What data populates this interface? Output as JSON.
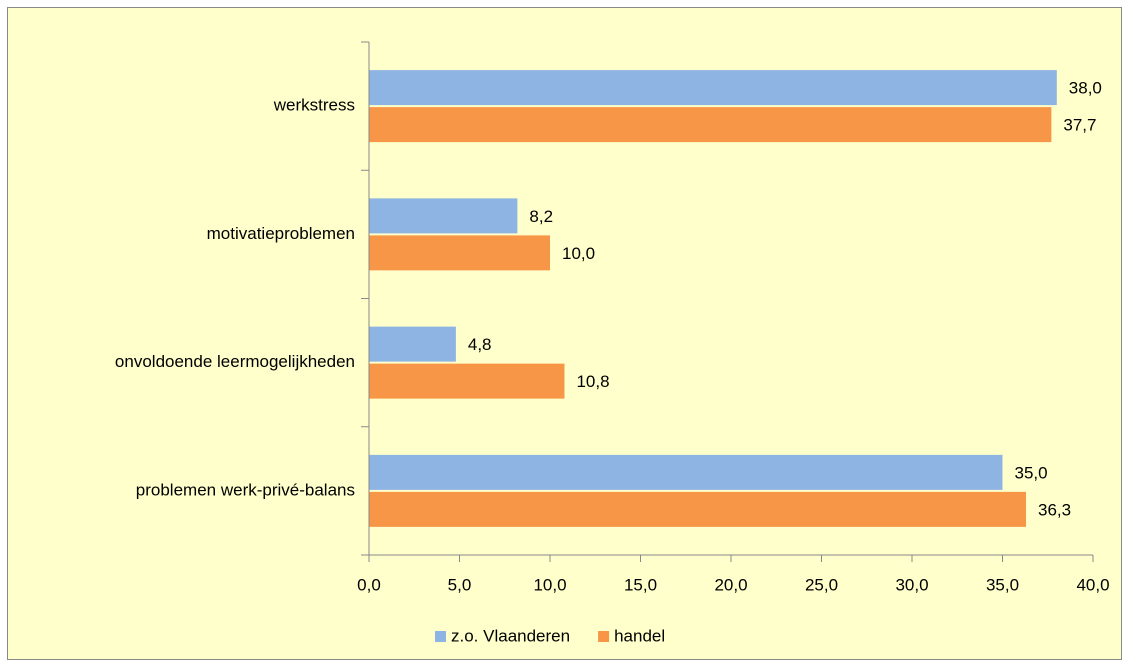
{
  "chart_data": {
    "type": "hbar",
    "categories": [
      "werkstress",
      "motivatieproblemen",
      "onvoldoende leermogelijkheden",
      "problemen werk-privé-balans"
    ],
    "series": [
      {
        "name": "z.o. Vlaanderen",
        "color": "#8eb4e3",
        "values": [
          38.0,
          8.2,
          4.8,
          35.0
        ],
        "value_labels": [
          "38,0",
          "8,2",
          "4,8",
          "35,0"
        ]
      },
      {
        "name": "handel",
        "color": "#f79646",
        "values": [
          37.7,
          10.0,
          10.8,
          36.3
        ],
        "value_labels": [
          "37,7",
          "10,0",
          "10,8",
          "36,3"
        ]
      }
    ],
    "xlim": [
      0,
      40
    ],
    "xticks": [
      {
        "value": 0,
        "label": "0,0"
      },
      {
        "value": 5,
        "label": "5,0"
      },
      {
        "value": 10,
        "label": "10,0"
      },
      {
        "value": 15,
        "label": "15,0"
      },
      {
        "value": 20,
        "label": "20,0"
      },
      {
        "value": 25,
        "label": "25,0"
      },
      {
        "value": 30,
        "label": "30,0"
      },
      {
        "value": 35,
        "label": "35,0"
      },
      {
        "value": 40,
        "label": "40,0"
      }
    ],
    "legend": "bottom"
  }
}
